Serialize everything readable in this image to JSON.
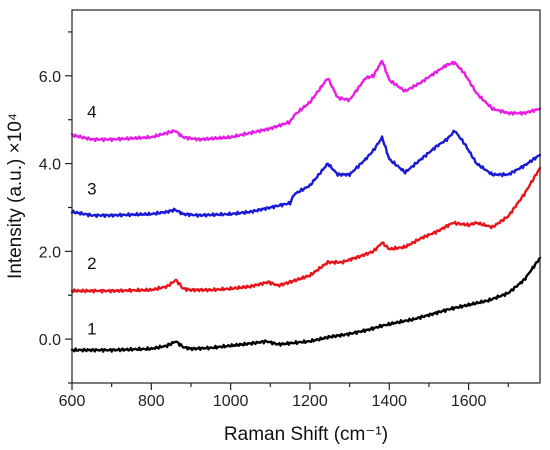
{
  "chart_data": {
    "type": "line",
    "title": "",
    "xlabel": "Raman Shift (cm⁻¹)",
    "ylabel": "Intensity (a.u.) ×10⁴",
    "xlim": [
      600,
      1780
    ],
    "ylim": [
      -1.0,
      7.5
    ],
    "x_ticks": [
      600,
      800,
      1000,
      1200,
      1400,
      1600
    ],
    "x_tick_labels": [
      "600",
      "800",
      "1000",
      "1200",
      "1400",
      "1600"
    ],
    "y_ticks": [
      0.0,
      2.0,
      4.0,
      6.0
    ],
    "y_tick_labels": [
      "0.0",
      "2.0",
      "4.0",
      "6.0"
    ],
    "grid": false,
    "legend": "none",
    "series": [
      {
        "label": "1",
        "color": "#000000",
        "label_at": [
          650,
          0.1
        ],
        "x": [
          600,
          700,
          800,
          840,
          862,
          880,
          900,
          950,
          1000,
          1050,
          1090,
          1120,
          1200,
          1250,
          1300,
          1350,
          1380,
          1420,
          1460,
          1500,
          1550,
          1600,
          1650,
          1700,
          1740,
          1780
        ],
        "y": [
          -0.25,
          -0.25,
          -0.22,
          -0.15,
          -0.05,
          -0.18,
          -0.22,
          -0.2,
          -0.15,
          -0.1,
          -0.05,
          -0.12,
          -0.05,
          0.05,
          0.12,
          0.22,
          0.3,
          0.38,
          0.45,
          0.55,
          0.68,
          0.78,
          0.88,
          1.05,
          1.35,
          1.85
        ]
      },
      {
        "label": "2",
        "color": "#e8141b",
        "label_at": [
          650,
          1.6
        ],
        "x": [
          600,
          700,
          800,
          840,
          862,
          880,
          900,
          950,
          1000,
          1050,
          1095,
          1120,
          1150,
          1200,
          1245,
          1280,
          1330,
          1360,
          1382,
          1400,
          1440,
          1480,
          1520,
          1560,
          1600,
          1620,
          1660,
          1700,
          1740,
          1780
        ],
        "y": [
          1.1,
          1.1,
          1.12,
          1.2,
          1.35,
          1.15,
          1.12,
          1.12,
          1.15,
          1.2,
          1.3,
          1.22,
          1.3,
          1.45,
          1.75,
          1.75,
          1.9,
          2.0,
          2.2,
          2.05,
          2.1,
          2.3,
          2.45,
          2.65,
          2.6,
          2.65,
          2.55,
          2.8,
          3.3,
          3.9
        ]
      },
      {
        "label": "3",
        "color": "#1a1ad6",
        "label_at": [
          650,
          3.3
        ],
        "x": [
          600,
          650,
          700,
          800,
          840,
          860,
          880,
          920,
          1000,
          1050,
          1100,
          1150,
          1160,
          1200,
          1245,
          1270,
          1300,
          1340,
          1360,
          1382,
          1400,
          1440,
          1480,
          1520,
          1545,
          1565,
          1590,
          1620,
          1660,
          1700,
          1740,
          1780
        ],
        "y": [
          2.9,
          2.82,
          2.82,
          2.85,
          2.9,
          2.95,
          2.85,
          2.82,
          2.85,
          2.9,
          3.0,
          3.1,
          3.3,
          3.5,
          4.0,
          3.75,
          3.75,
          4.1,
          4.3,
          4.6,
          4.1,
          3.8,
          4.1,
          4.4,
          4.55,
          4.75,
          4.45,
          4.0,
          3.75,
          3.75,
          3.95,
          4.2
        ]
      },
      {
        "label": "4",
        "color": "#e61ee6",
        "label_at": [
          650,
          5.05
        ],
        "x": [
          600,
          650,
          700,
          800,
          840,
          860,
          880,
          920,
          1000,
          1050,
          1100,
          1150,
          1160,
          1200,
          1245,
          1270,
          1300,
          1340,
          1360,
          1382,
          1400,
          1440,
          1480,
          1520,
          1545,
          1565,
          1590,
          1620,
          1660,
          1700,
          1740,
          1780
        ],
        "y": [
          4.65,
          4.55,
          4.55,
          4.6,
          4.7,
          4.75,
          4.6,
          4.55,
          4.6,
          4.7,
          4.8,
          4.95,
          5.1,
          5.4,
          5.95,
          5.5,
          5.45,
          5.95,
          6.0,
          6.35,
          5.9,
          5.65,
          5.85,
          6.1,
          6.25,
          6.3,
          6.05,
          5.6,
          5.25,
          5.15,
          5.15,
          5.25
        ]
      }
    ]
  }
}
